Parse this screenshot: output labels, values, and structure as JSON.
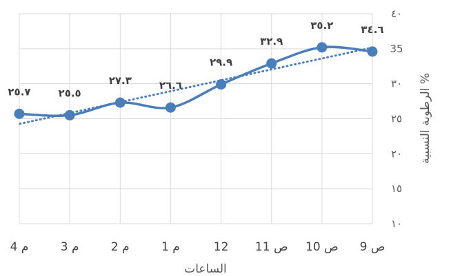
{
  "chart_data": {
    "type": "line",
    "categories": [
      "9 ص",
      "10 ص",
      "11 ص",
      "12",
      "1 م",
      "2 م",
      "3 م",
      "4 م"
    ],
    "series": [
      {
        "values": [
          34.6,
          35.2,
          32.9,
          29.9,
          26.6,
          27.3,
          25.5,
          25.7
        ],
        "labels": [
          "٣٤.٦",
          "٣٥.٢",
          "٣٢.٩",
          "٢٩.٩",
          "٢٦.٦",
          "٢٧.٣",
          "٢٥.٥",
          "٢٥.٧"
        ],
        "color": "#4a7ebb",
        "smooth": true,
        "marker": "circle"
      }
    ],
    "trendline": {
      "type": "linear",
      "style": "dotted",
      "color": "#4a7ebb"
    },
    "xlabel": "الساعات",
    "ylabel": "الرطوبة النسبية %",
    "ylim": [
      10,
      40
    ],
    "yticks": [
      10,
      15,
      20,
      25,
      30,
      35,
      40
    ],
    "ytick_labels": [
      "١٠",
      "١٥",
      "٢٠",
      "٢٥",
      "٣٠",
      "35",
      "٤٠"
    ],
    "grid": true,
    "x_reversed": true,
    "y_axis_side": "right",
    "legend": "none"
  }
}
